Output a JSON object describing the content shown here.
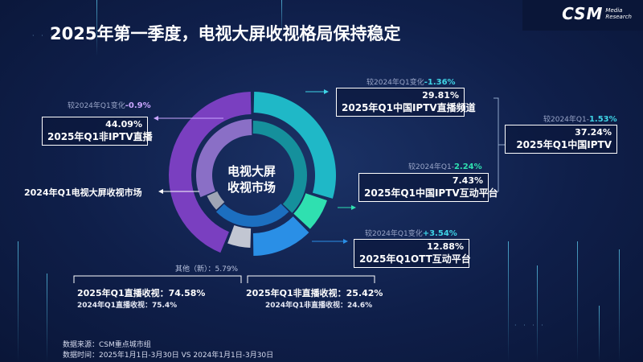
{
  "header": {
    "title": "2025年第一季度，电视大屏收视格局保持稳定",
    "logo_text": "CSM",
    "logo_sub_1": "Media",
    "logo_sub_2": "Research"
  },
  "chart_data": {
    "type": "pie",
    "style": "nested-donut",
    "center_label_1": "电视大屏",
    "center_label_2": "收视市场",
    "outer_ring": [
      {
        "name": "2025年Q1中国IPTV直播频道",
        "value": 29.81,
        "change_prefix": "较2024年Q1变化",
        "change": "-1.36%",
        "color": "#1fb8c7"
      },
      {
        "name": "2025年Q1中国IPTV互动平台",
        "value": 7.43,
        "change_prefix": "较2024年Q1-",
        "change": "2.24%",
        "color": "#2fe0b0"
      },
      {
        "name": "2025年Q1OTT互动平台",
        "value": 12.88,
        "change_prefix": "较2024年Q1变化",
        "change": "+3.54%",
        "color": "#2a8fe6"
      },
      {
        "name": "其他（新）",
        "value": 5.79,
        "color": "#c2c6d2"
      },
      {
        "name": "2025年Q1非IPTV直播",
        "value": 44.09,
        "change_prefix": "较2024年Q1变化",
        "change": "-0.9%",
        "color": "#7a3fc0"
      }
    ],
    "inner_ring": [
      {
        "name": "IPTV",
        "value": 37.24,
        "color": "#15909c"
      },
      {
        "name": "interactive",
        "value": 25.42,
        "color": "#1c6fc0"
      },
      {
        "name": "other",
        "value": 5.79,
        "color": "#9fa5b5"
      },
      {
        "name": "non-IPTV",
        "value": 31.55,
        "color": "#8a6fc6"
      }
    ],
    "iptv_total": {
      "name": "2025年Q1中国IPTV",
      "value": "37.24%",
      "change_prefix": "较2024年Q1-",
      "change": "1.53%"
    },
    "market_2024_label": "2024年Q1电视大屏收视市场",
    "other_label": "其他（新）：5.79%",
    "summary": {
      "live_2025": "2025年Q1直播收视：74.58%",
      "live_2024": "2024年Q1直播收视：75.4%",
      "nonlive_2025": "2025年Q1非直播收视：25.42%",
      "nonlive_2024": "2024年Q1非直播收视：24.6%"
    }
  },
  "labels": {
    "iptv_live_pct": "29.81%",
    "iptv_interactive_pct": "7.43%",
    "ott_pct": "12.88%",
    "non_iptv_pct": "44.09%"
  },
  "colors": {
    "background": "#0f1f4a",
    "accent_teal": "#3fd4e6",
    "accent_purple": "#c9a6ff"
  },
  "source": {
    "line1": "数据来源：CSM重点城市组",
    "line2": "数据时间：2025年1月1日-3月30日 VS 2024年1月1日-3月30日"
  }
}
